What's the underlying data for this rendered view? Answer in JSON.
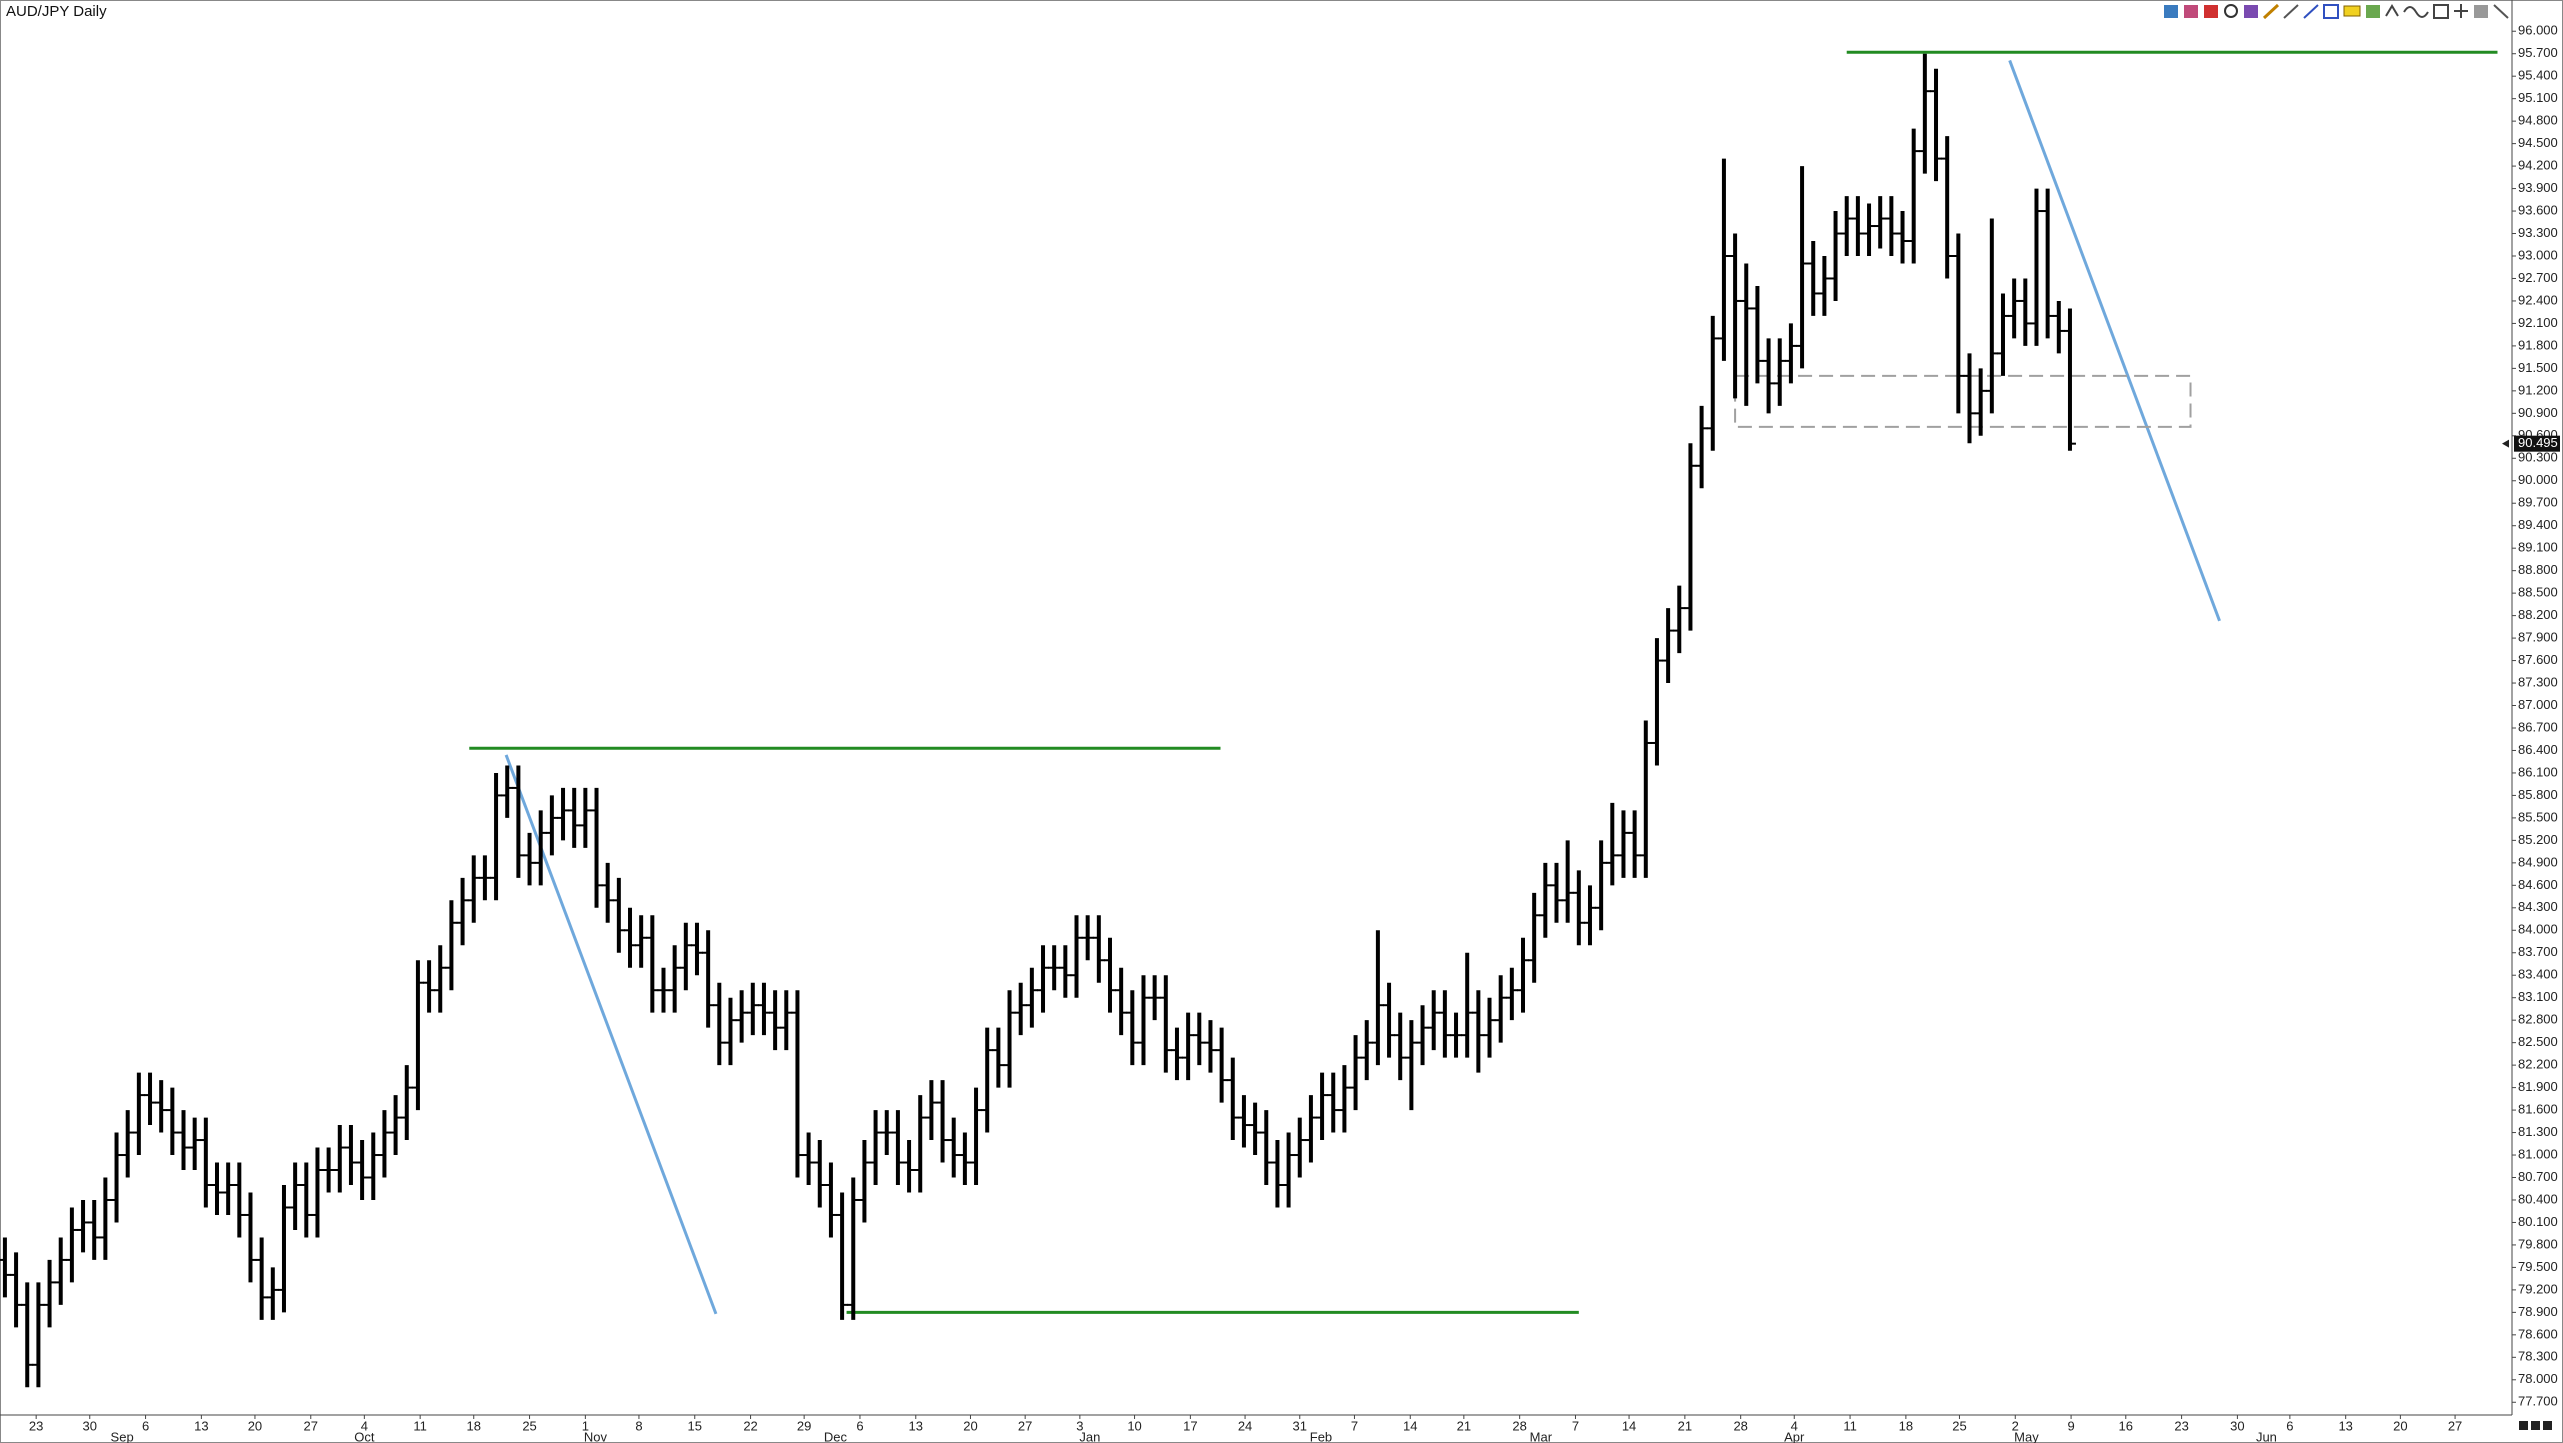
{
  "chart_data": {
    "type": "ohlc",
    "title": "AUD/JPY Daily",
    "color": "#000000",
    "open": [
      79.6,
      79.4,
      79.0,
      78.2,
      79.0,
      79.3,
      79.6,
      80.0,
      80.1,
      79.9,
      80.4,
      81.0,
      81.3,
      81.8,
      81.7,
      81.6,
      81.3,
      81.1,
      81.2,
      80.6,
      80.5,
      80.6,
      80.2,
      79.6,
      79.1,
      79.2,
      80.3,
      80.6,
      80.2,
      80.8,
      80.8,
      81.1,
      80.9,
      80.7,
      81.0,
      81.3,
      81.5,
      81.9,
      83.3,
      83.2,
      83.5,
      84.1,
      84.4,
      84.7,
      84.7,
      85.8,
      85.9,
      85.0,
      84.9,
      85.3,
      85.5,
      85.6,
      85.4,
      85.6,
      84.6,
      84.4,
      84.0,
      83.8,
      83.9,
      83.2,
      83.2,
      83.5,
      83.8,
      83.7,
      83.0,
      82.5,
      82.8,
      82.9,
      83.0,
      82.9,
      82.7,
      82.9,
      81.0,
      80.9,
      80.6,
      80.2,
      79.0,
      80.4,
      80.9,
      81.3,
      81.3,
      80.9,
      80.8,
      81.5,
      81.7,
      81.2,
      81.0,
      80.9,
      81.6,
      82.4,
      82.2,
      82.9,
      83.0,
      83.2,
      83.5,
      83.5,
      83.4,
      83.9,
      83.9,
      83.6,
      83.2,
      82.9,
      82.5,
      83.1,
      83.1,
      82.4,
      82.3,
      82.6,
      82.5,
      82.4,
      82.0,
      81.5,
      81.4,
      81.3,
      80.9,
      80.6,
      81.0,
      81.2,
      81.5,
      81.8,
      81.6,
      81.9,
      82.3,
      82.5,
      83.0,
      82.6,
      82.3,
      82.5,
      82.7,
      82.9,
      82.6,
      82.6,
      82.9,
      82.6,
      82.8,
      83.1,
      83.2,
      83.6,
      84.2,
      84.6,
      84.4,
      84.5,
      84.1,
      84.3,
      84.9,
      85.0,
      85.3,
      85.0,
      86.5,
      87.6,
      88.0,
      88.3,
      90.2,
      90.7,
      91.9,
      93.0,
      92.4,
      92.3,
      91.6,
      91.3,
      91.6,
      91.8,
      92.9,
      92.5,
      92.7,
      93.3,
      93.5,
      93.3,
      93.4,
      93.5,
      93.3,
      93.2,
      94.4,
      95.2,
      94.3,
      93.0,
      91.4,
      90.9,
      91.2,
      91.7,
      92.2,
      92.4,
      92.1,
      93.6,
      92.2,
      92.0
    ],
    "high": [
      79.9,
      79.7,
      79.3,
      79.3,
      79.6,
      79.9,
      80.3,
      80.4,
      80.4,
      80.7,
      81.3,
      81.6,
      82.1,
      82.1,
      82.0,
      81.9,
      81.6,
      81.5,
      81.5,
      80.9,
      80.9,
      80.9,
      80.5,
      79.9,
      79.5,
      80.6,
      80.9,
      80.9,
      81.1,
      81.1,
      81.4,
      81.4,
      81.2,
      81.3,
      81.6,
      81.8,
      82.2,
      83.6,
      83.6,
      83.8,
      84.4,
      84.7,
      85.0,
      85.0,
      86.1,
      86.2,
      86.2,
      85.3,
      85.6,
      85.8,
      85.9,
      85.9,
      85.9,
      85.9,
      84.9,
      84.7,
      84.3,
      84.2,
      84.2,
      83.5,
      83.8,
      84.1,
      84.1,
      84.0,
      83.3,
      83.1,
      83.2,
      83.3,
      83.3,
      83.2,
      83.2,
      83.2,
      81.3,
      81.2,
      80.9,
      80.5,
      80.7,
      81.2,
      81.6,
      81.6,
      81.6,
      81.2,
      81.8,
      82.0,
      82.0,
      81.5,
      81.3,
      81.9,
      82.7,
      82.7,
      83.2,
      83.3,
      83.5,
      83.8,
      83.8,
      83.8,
      84.2,
      84.2,
      84.2,
      83.9,
      83.5,
      83.2,
      83.4,
      83.4,
      83.4,
      82.7,
      82.9,
      82.9,
      82.8,
      82.7,
      82.3,
      81.8,
      81.7,
      81.6,
      81.2,
      81.3,
      81.5,
      81.8,
      82.1,
      82.1,
      82.2,
      82.6,
      82.8,
      84.0,
      83.3,
      82.9,
      82.8,
      83.0,
      83.2,
      83.2,
      82.9,
      83.7,
      83.2,
      83.1,
      83.4,
      83.5,
      83.9,
      84.5,
      84.9,
      84.9,
      85.2,
      84.8,
      84.6,
      85.2,
      85.7,
      85.6,
      85.6,
      86.8,
      87.9,
      88.3,
      88.6,
      90.5,
      91.0,
      92.2,
      94.3,
      93.3,
      92.9,
      92.6,
      91.9,
      91.9,
      92.1,
      94.2,
      93.2,
      93.0,
      93.6,
      93.8,
      93.8,
      93.7,
      93.8,
      93.8,
      93.6,
      94.7,
      95.7,
      95.5,
      94.6,
      93.3,
      91.7,
      91.5,
      93.5,
      92.5,
      92.7,
      92.7,
      93.9,
      93.9,
      92.4,
      92.3
    ],
    "low": [
      79.1,
      78.7,
      77.9,
      77.9,
      78.7,
      79.0,
      79.3,
      79.7,
      79.6,
      79.6,
      80.1,
      80.7,
      81.0,
      81.4,
      81.3,
      81.0,
      80.8,
      80.8,
      80.3,
      80.2,
      80.2,
      79.9,
      79.3,
      78.8,
      78.8,
      78.9,
      80.0,
      79.9,
      79.9,
      80.5,
      80.5,
      80.6,
      80.4,
      80.4,
      80.7,
      81.0,
      81.2,
      81.6,
      82.9,
      82.9,
      83.2,
      83.8,
      84.1,
      84.4,
      84.4,
      85.5,
      84.7,
      84.6,
      84.6,
      85.0,
      85.2,
      85.1,
      85.1,
      84.3,
      84.1,
      83.7,
      83.5,
      83.5,
      82.9,
      82.9,
      82.9,
      83.2,
      83.4,
      82.7,
      82.2,
      82.2,
      82.5,
      82.6,
      82.6,
      82.4,
      82.4,
      80.7,
      80.6,
      80.3,
      79.9,
      78.8,
      78.8,
      80.1,
      80.6,
      81.0,
      80.6,
      80.5,
      80.5,
      81.2,
      80.9,
      80.7,
      80.6,
      80.6,
      81.3,
      81.9,
      81.9,
      82.6,
      82.7,
      82.9,
      83.2,
      83.1,
      83.1,
      83.6,
      83.3,
      82.9,
      82.6,
      82.2,
      82.2,
      82.8,
      82.1,
      82.0,
      82.0,
      82.2,
      82.1,
      81.7,
      81.2,
      81.1,
      81.0,
      80.6,
      80.3,
      80.3,
      80.7,
      80.9,
      81.2,
      81.3,
      81.3,
      81.6,
      82.0,
      82.2,
      82.3,
      82.0,
      81.6,
      82.2,
      82.4,
      82.3,
      82.3,
      82.3,
      82.1,
      82.3,
      82.5,
      82.8,
      82.9,
      83.3,
      83.9,
      84.1,
      84.1,
      83.8,
      83.8,
      84.0,
      84.6,
      84.7,
      84.7,
      84.7,
      86.2,
      87.3,
      87.7,
      88.0,
      89.9,
      90.4,
      91.6,
      91.1,
      91.0,
      91.3,
      90.9,
      91.0,
      91.3,
      91.5,
      92.2,
      92.2,
      92.4,
      93.0,
      93.0,
      93.0,
      93.1,
      93.0,
      92.9,
      92.9,
      94.1,
      94.0,
      92.7,
      90.9,
      90.5,
      90.6,
      90.9,
      91.4,
      91.9,
      91.8,
      91.8,
      91.9,
      91.7,
      90.4
    ],
    "close": [
      79.4,
      79.0,
      78.2,
      79.0,
      79.3,
      79.6,
      80.0,
      80.1,
      79.9,
      80.4,
      81.0,
      81.3,
      81.8,
      81.7,
      81.6,
      81.3,
      81.1,
      81.2,
      80.6,
      80.5,
      80.6,
      80.2,
      79.6,
      79.1,
      79.2,
      80.3,
      80.6,
      80.2,
      80.8,
      80.8,
      81.1,
      80.9,
      80.7,
      81.0,
      81.3,
      81.5,
      81.9,
      83.3,
      83.2,
      83.5,
      84.1,
      84.4,
      84.7,
      84.7,
      85.8,
      85.9,
      85.0,
      84.9,
      85.3,
      85.5,
      85.6,
      85.4,
      85.6,
      84.6,
      84.4,
      84.0,
      83.8,
      83.9,
      83.2,
      83.2,
      83.5,
      83.8,
      83.7,
      83.0,
      82.5,
      82.8,
      82.9,
      83.0,
      82.9,
      82.7,
      82.9,
      81.0,
      80.9,
      80.6,
      80.2,
      79.0,
      80.4,
      80.9,
      81.3,
      81.3,
      80.9,
      80.8,
      81.5,
      81.7,
      81.2,
      81.0,
      80.9,
      81.6,
      82.4,
      82.2,
      82.9,
      83.0,
      83.2,
      83.5,
      83.5,
      83.4,
      83.9,
      83.9,
      83.6,
      83.2,
      82.9,
      82.5,
      83.1,
      83.1,
      82.4,
      82.3,
      82.6,
      82.5,
      82.4,
      82.0,
      81.5,
      81.4,
      81.3,
      80.9,
      80.6,
      81.0,
      81.2,
      81.5,
      81.8,
      81.6,
      81.9,
      82.3,
      82.5,
      83.0,
      82.6,
      82.3,
      82.5,
      82.7,
      82.9,
      82.6,
      82.6,
      82.9,
      82.6,
      82.8,
      83.1,
      83.2,
      83.6,
      84.2,
      84.6,
      84.4,
      84.5,
      84.1,
      84.3,
      84.9,
      85.0,
      85.3,
      85.0,
      86.5,
      87.6,
      88.0,
      88.3,
      90.2,
      90.7,
      91.9,
      93.0,
      92.4,
      92.3,
      91.6,
      91.3,
      91.6,
      91.8,
      92.9,
      92.5,
      92.7,
      93.3,
      93.5,
      93.3,
      93.4,
      93.5,
      93.3,
      93.2,
      94.4,
      95.2,
      94.3,
      93.0,
      91.4,
      90.9,
      91.2,
      91.7,
      92.2,
      92.4,
      92.1,
      93.6,
      92.2,
      92.0,
      90.495
    ],
    "xlim": [
      -0.44,
      224.6
    ],
    "ylim": [
      77.53,
      96.11
    ],
    "xticks": [
      {
        "value": 2.8,
        "label": "23"
      },
      {
        "value": 7.6,
        "label": "30"
      },
      {
        "value": 12.6,
        "label": "6"
      },
      {
        "value": 17.6,
        "label": "13"
      },
      {
        "value": 22.4,
        "label": "20"
      },
      {
        "value": 27.4,
        "label": "27"
      },
      {
        "value": 32.2,
        "label": "4"
      },
      {
        "value": 37.2,
        "label": "11"
      },
      {
        "value": 42.0,
        "label": "18"
      },
      {
        "value": 47.0,
        "label": "25"
      },
      {
        "value": 52.0,
        "label": "1"
      },
      {
        "value": 56.8,
        "label": "8"
      },
      {
        "value": 61.8,
        "label": "15"
      },
      {
        "value": 66.8,
        "label": "22"
      },
      {
        "value": 71.6,
        "label": "29"
      },
      {
        "value": 76.6,
        "label": "6"
      },
      {
        "value": 81.6,
        "label": "13"
      },
      {
        "value": 86.5,
        "label": "20"
      },
      {
        "value": 91.4,
        "label": "27"
      },
      {
        "value": 96.3,
        "label": "3"
      },
      {
        "value": 101.2,
        "label": "10"
      },
      {
        "value": 106.2,
        "label": "17"
      },
      {
        "value": 111.1,
        "label": "24"
      },
      {
        "value": 116.0,
        "label": "31"
      },
      {
        "value": 120.9,
        "label": "7"
      },
      {
        "value": 125.9,
        "label": "14"
      },
      {
        "value": 130.7,
        "label": "21"
      },
      {
        "value": 135.7,
        "label": "28"
      },
      {
        "value": 140.7,
        "label": "7"
      },
      {
        "value": 145.5,
        "label": "14"
      },
      {
        "value": 150.5,
        "label": "21"
      },
      {
        "value": 155.5,
        "label": "28"
      },
      {
        "value": 160.3,
        "label": "4"
      },
      {
        "value": 165.3,
        "label": "11"
      },
      {
        "value": 170.3,
        "label": "18"
      },
      {
        "value": 175.1,
        "label": "25"
      },
      {
        "value": 180.1,
        "label": "2"
      },
      {
        "value": 185.1,
        "label": "9"
      },
      {
        "value": 190.0,
        "label": "16"
      },
      {
        "value": 195.0,
        "label": "23"
      },
      {
        "value": 200.0,
        "label": "30"
      },
      {
        "value": 204.7,
        "label": "6"
      },
      {
        "value": 209.7,
        "label": "13"
      },
      {
        "value": 214.6,
        "label": "20"
      },
      {
        "value": 219.5,
        "label": "27"
      }
    ],
    "month_labels": [
      {
        "value": 10.5,
        "label": "Sep"
      },
      {
        "value": 32.2,
        "label": "Oct"
      },
      {
        "value": 52.9,
        "label": "Nov"
      },
      {
        "value": 74.4,
        "label": "Dec"
      },
      {
        "value": 97.2,
        "label": "Jan"
      },
      {
        "value": 117.9,
        "label": "Feb"
      },
      {
        "value": 137.6,
        "label": "Mar"
      },
      {
        "value": 160.3,
        "label": "Apr"
      },
      {
        "value": 181.1,
        "label": "May"
      },
      {
        "value": 202.6,
        "label": "Jun"
      }
    ],
    "yticks": [
      {
        "value": 77.7,
        "label": "77.700"
      },
      {
        "value": 78,
        "label": "78.000"
      },
      {
        "value": 78.3,
        "label": "78.300"
      },
      {
        "value": 78.6,
        "label": "78.600"
      },
      {
        "value": 78.9,
        "label": "78.900"
      },
      {
        "value": 79.2,
        "label": "79.200"
      },
      {
        "value": 79.5,
        "label": "79.500"
      },
      {
        "value": 79.8,
        "label": "79.800"
      },
      {
        "value": 80.1,
        "label": "80.100"
      },
      {
        "value": 80.4,
        "label": "80.400"
      },
      {
        "value": 80.7,
        "label": "80.700"
      },
      {
        "value": 81,
        "label": "81.000"
      },
      {
        "value": 81.3,
        "label": "81.300"
      },
      {
        "value": 81.6,
        "label": "81.600"
      },
      {
        "value": 81.9,
        "label": "81.900"
      },
      {
        "value": 82.2,
        "label": "82.200"
      },
      {
        "value": 82.5,
        "label": "82.500"
      },
      {
        "value": 82.8,
        "label": "82.800"
      },
      {
        "value": 83.1,
        "label": "83.100"
      },
      {
        "value": 83.4,
        "label": "83.400"
      },
      {
        "value": 83.7,
        "label": "83.700"
      },
      {
        "value": 84,
        "label": "84.000"
      },
      {
        "value": 84.3,
        "label": "84.300"
      },
      {
        "value": 84.6,
        "label": "84.600"
      },
      {
        "value": 84.9,
        "label": "84.900"
      },
      {
        "value": 85.2,
        "label": "85.200"
      },
      {
        "value": 85.5,
        "label": "85.500"
      },
      {
        "value": 85.8,
        "label": "85.800"
      },
      {
        "value": 86.1,
        "label": "86.100"
      },
      {
        "value": 86.4,
        "label": "86.400"
      },
      {
        "value": 86.7,
        "label": "86.700"
      },
      {
        "value": 87,
        "label": "87.000"
      },
      {
        "value": 87.3,
        "label": "87.300"
      },
      {
        "value": 87.6,
        "label": "87.600"
      },
      {
        "value": 87.9,
        "label": "87.900"
      },
      {
        "value": 88.2,
        "label": "88.200"
      },
      {
        "value": 88.5,
        "label": "88.500"
      },
      {
        "value": 88.8,
        "label": "88.800"
      },
      {
        "value": 89.1,
        "label": "89.100"
      },
      {
        "value": 89.4,
        "label": "89.400"
      },
      {
        "value": 89.7,
        "label": "89.700"
      },
      {
        "value": 90,
        "label": "90.000"
      },
      {
        "value": 90.3,
        "label": "90.300"
      },
      {
        "value": 90.6,
        "label": "90.600"
      },
      {
        "value": 90.9,
        "label": "90.900"
      },
      {
        "value": 91.2,
        "label": "91.200"
      },
      {
        "value": 91.5,
        "label": "91.500"
      },
      {
        "value": 91.8,
        "label": "91.800"
      },
      {
        "value": 92.1,
        "label": "92.100"
      },
      {
        "value": 92.4,
        "label": "92.400"
      },
      {
        "value": 92.7,
        "label": "92.700"
      },
      {
        "value": 93,
        "label": "93.000"
      },
      {
        "value": 93.3,
        "label": "93.300"
      },
      {
        "value": 93.6,
        "label": "93.600"
      },
      {
        "value": 93.9,
        "label": "93.900"
      },
      {
        "value": 94.2,
        "label": "94.200"
      },
      {
        "value": 94.5,
        "label": "94.500"
      },
      {
        "value": 94.8,
        "label": "94.800"
      },
      {
        "value": 95.1,
        "label": "95.100"
      },
      {
        "value": 95.4,
        "label": "95.400"
      },
      {
        "value": 95.7,
        "label": "95.700"
      },
      {
        "value": 96,
        "label": "96.000"
      }
    ],
    "grid": false,
    "drawings": [
      {
        "shape": "line",
        "x": [
          41.6,
          108.9
        ],
        "y": [
          86.43,
          86.43
        ],
        "color": "#228b22"
      },
      {
        "shape": "line",
        "x": [
          75.4,
          141.0
        ],
        "y": [
          78.9,
          78.9
        ],
        "color": "#228b22"
      },
      {
        "shape": "line",
        "x": [
          165.0,
          223.3
        ],
        "y": [
          95.72,
          95.72
        ],
        "color": "#228b22"
      },
      {
        "shape": "line",
        "x": [
          44.9,
          63.7
        ],
        "y": [
          86.34,
          78.88
        ],
        "color": "#6fa8dc"
      },
      {
        "shape": "line",
        "x": [
          179.6,
          198.4
        ],
        "y": [
          95.61,
          88.13
        ],
        "color": "#6fa8dc"
      },
      {
        "shape": "rect",
        "x": [
          155.0,
          195.8
        ],
        "y": [
          91.4,
          90.72
        ],
        "color": "#a0a0a0",
        "dashed": true
      }
    ]
  }
}
